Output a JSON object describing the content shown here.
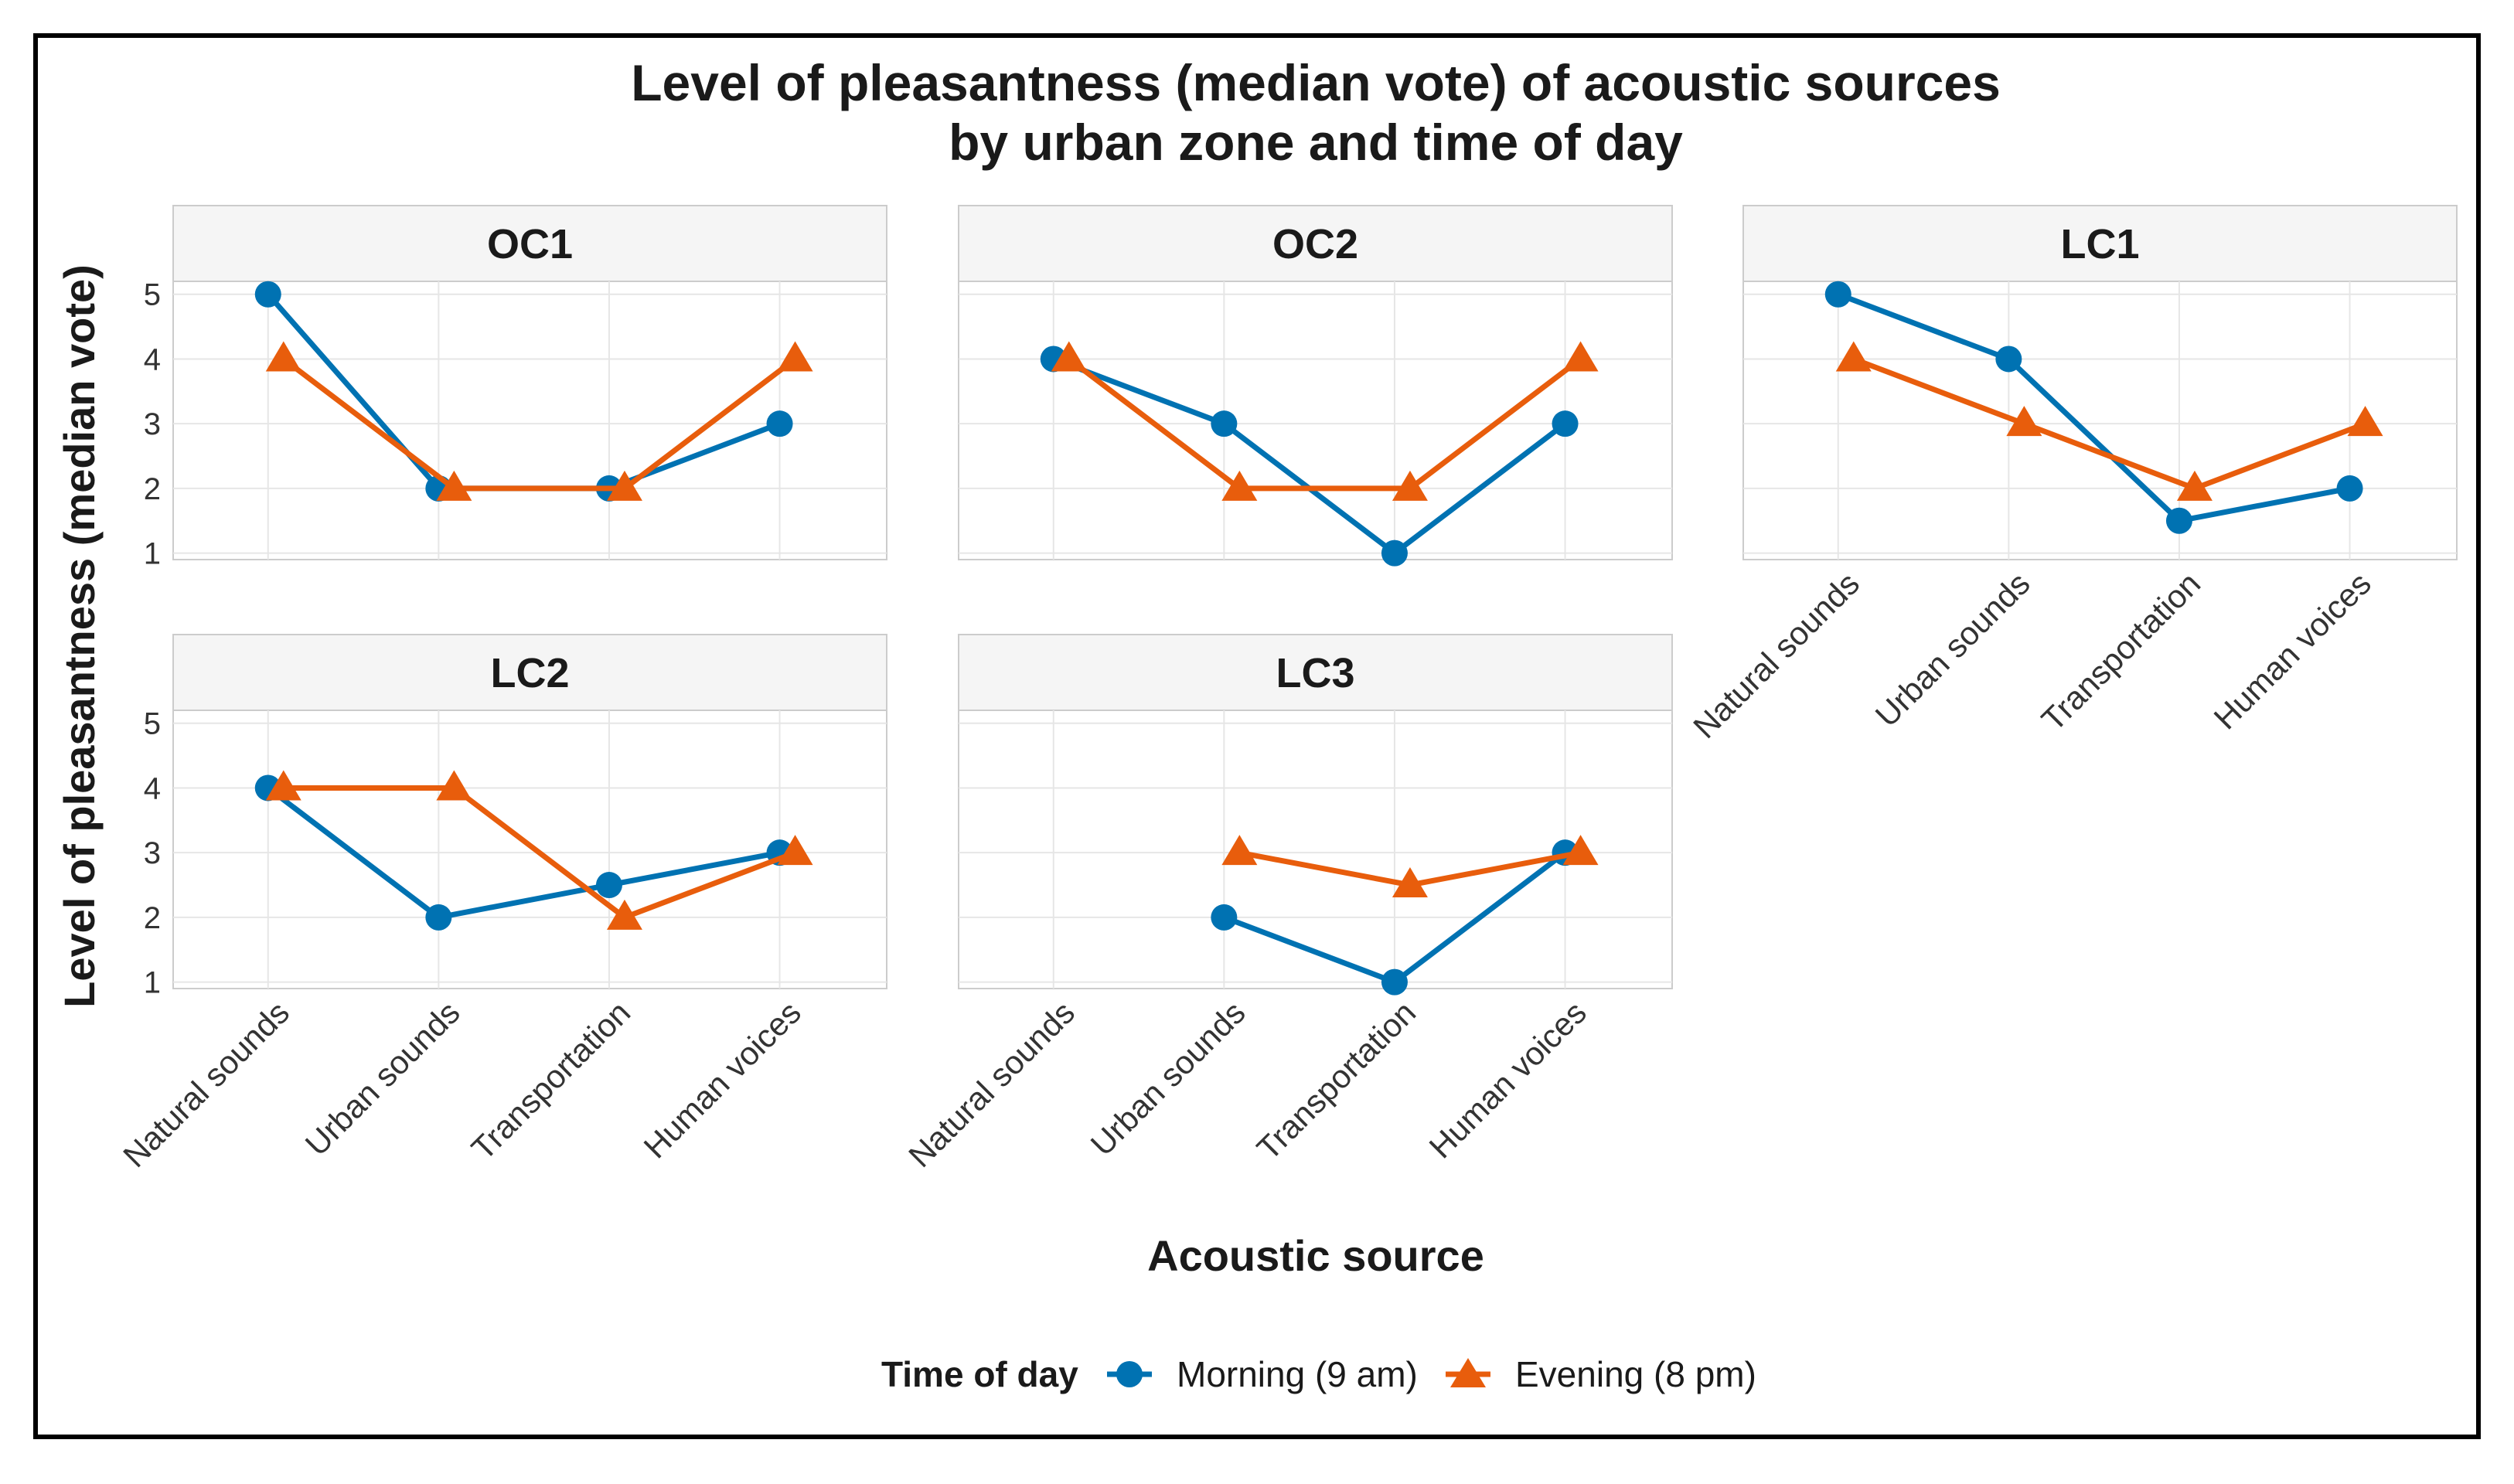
{
  "chart_data": {
    "type": "line",
    "title_lines": [
      "Level of pleasantness (median vote) of acoustic sources",
      "by urban zone and time of day"
    ],
    "xlabel": "Acoustic source",
    "ylabel": "Level of pleasantness (median vote)",
    "categories": [
      "Natural sounds",
      "Urban sounds",
      "Transportation",
      "Human voices"
    ],
    "yticks": [
      1,
      2,
      3,
      4,
      5
    ],
    "ylim": [
      0.9,
      5.2
    ],
    "grid": true,
    "legend": {
      "title": "Time of day",
      "position": "bottom",
      "entries": [
        "Morning (9 am)",
        "Evening (8 pm)"
      ]
    },
    "series_styles": [
      {
        "name": "Morning (9 am)",
        "color": "#0072B2",
        "marker": "circle"
      },
      {
        "name": "Evening (8 pm)",
        "color": "#E85D0C",
        "marker": "triangle"
      }
    ],
    "panels": [
      {
        "name": "OC1",
        "series": [
          {
            "name": "Morning (9 am)",
            "values": [
              5,
              2,
              2,
              3
            ]
          },
          {
            "name": "Evening (8 pm)",
            "values": [
              4,
              2,
              2,
              4
            ]
          }
        ]
      },
      {
        "name": "OC2",
        "series": [
          {
            "name": "Morning (9 am)",
            "values": [
              4,
              3,
              1,
              3
            ]
          },
          {
            "name": "Evening (8 pm)",
            "values": [
              4,
              2,
              2,
              4
            ]
          }
        ]
      },
      {
        "name": "LC1",
        "series": [
          {
            "name": "Morning (9 am)",
            "values": [
              5,
              4,
              1.5,
              2
            ]
          },
          {
            "name": "Evening (8 pm)",
            "values": [
              4,
              3,
              2,
              3
            ]
          }
        ]
      },
      {
        "name": "LC2",
        "series": [
          {
            "name": "Morning (9 am)",
            "values": [
              4,
              2,
              2.5,
              3
            ]
          },
          {
            "name": "Evening (8 pm)",
            "values": [
              4,
              4,
              2,
              3
            ]
          }
        ]
      },
      {
        "name": "LC3",
        "series": [
          {
            "name": "Morning (9 am)",
            "values": [
              null,
              2,
              1,
              3
            ]
          },
          {
            "name": "Evening (8 pm)",
            "values": [
              null,
              3,
              2.5,
              3
            ]
          }
        ]
      }
    ]
  }
}
